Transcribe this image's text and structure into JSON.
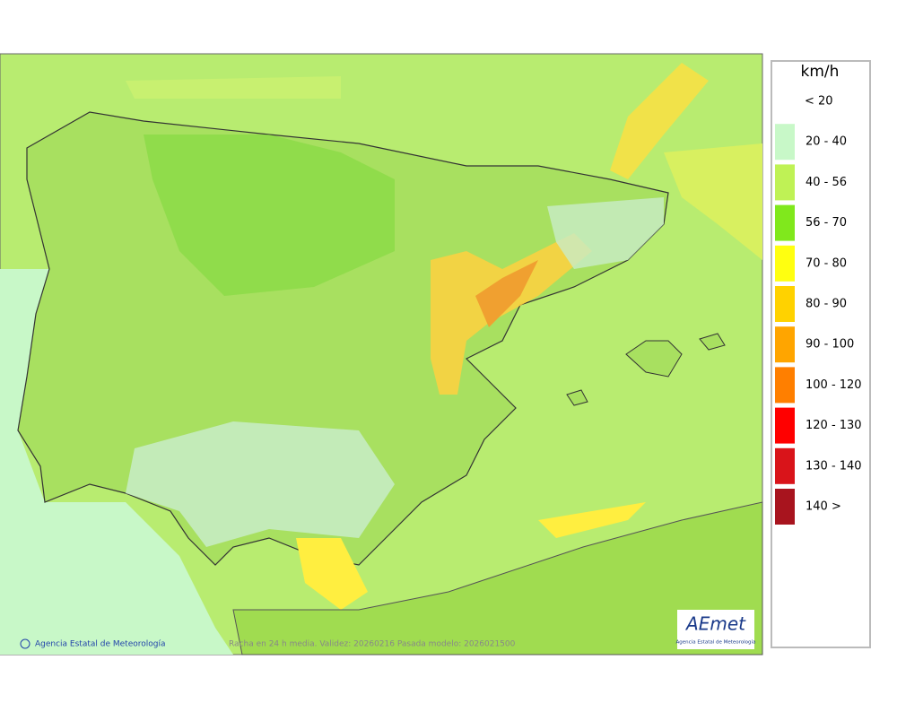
{
  "legend": {
    "title": "km/h",
    "items": [
      {
        "label": "< 20"
      },
      {
        "label": "20 - 40",
        "color": "#c8f8c8"
      },
      {
        "label": "40 - 56",
        "color": "#bff255"
      },
      {
        "label": "56 - 70",
        "color": "#80e81c"
      },
      {
        "label": "70 - 80",
        "color": "#ffff10"
      },
      {
        "label": "80 - 90",
        "color": "#ffd200"
      },
      {
        "label": "90 - 100",
        "color": "#ffa500"
      },
      {
        "label": "100 - 120",
        "color": "#ff7f00"
      },
      {
        "label": "120 - 130",
        "color": "#ff0000"
      },
      {
        "label": "130 - 140",
        "color": "#d9141a"
      },
      {
        "label": "140 >",
        "color": "#a8141e"
      }
    ]
  },
  "footer": {
    "credit": "Agencia Estatal de Meteorología",
    "caption": "Racha en 24 h media. Validez: 20260216 Pasada modelo: 2026021500"
  },
  "logo": {
    "name": "AEmet",
    "subtitle": "Agencia Estatal de Meteorología"
  }
}
